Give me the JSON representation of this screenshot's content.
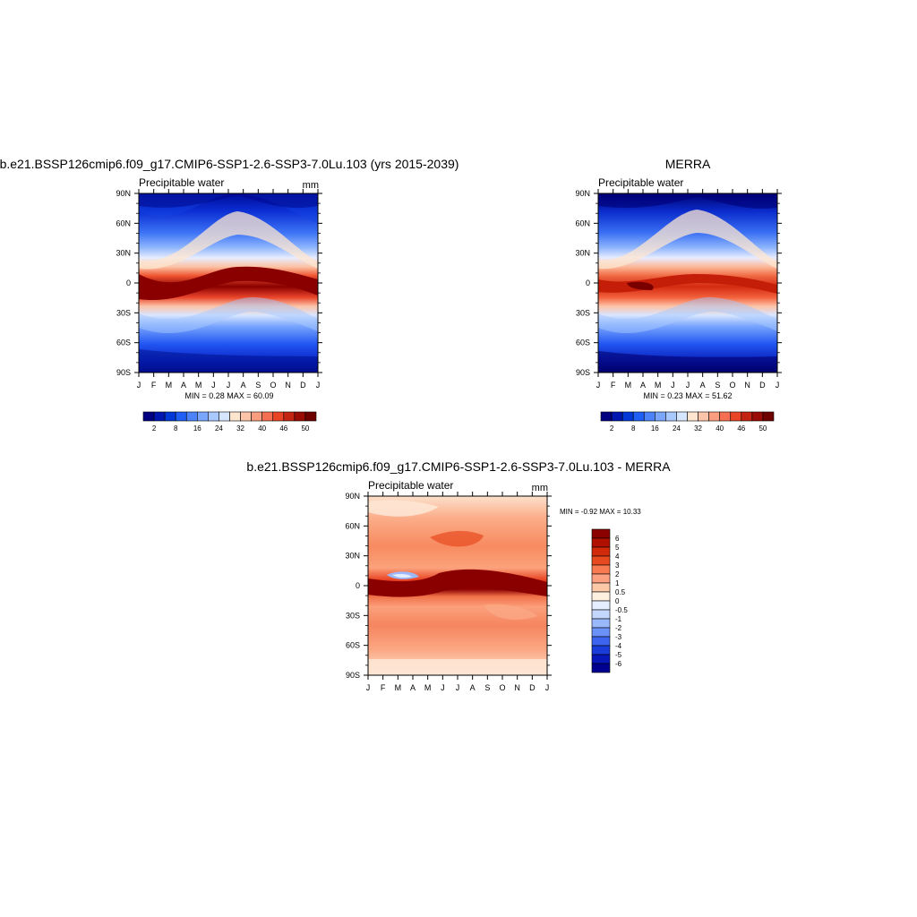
{
  "chart_data": [
    {
      "type": "heatmap",
      "title": "b.e21.BSSP126cmip6.f09_g17.CMIP6-SSP1-2.6-SSP3-7.0Lu.103 (yrs 2015-2039)",
      "subtitle_left": "Precipitable water",
      "units": "mm",
      "x_ticks": [
        "J",
        "F",
        "M",
        "A",
        "M",
        "J",
        "J",
        "A",
        "S",
        "O",
        "N",
        "D",
        "J"
      ],
      "y_ticks": [
        "90N",
        "60N",
        "30N",
        "0",
        "30S",
        "60S",
        "90S"
      ],
      "stats": "MIN =   0.28 MAX =  60.09",
      "colorbar_labels": [
        "2",
        "8",
        "16",
        "24",
        "32",
        "40",
        "46",
        "50"
      ],
      "colors": [
        "#000080",
        "#0016b0",
        "#0038d8",
        "#1f5ff5",
        "#4c82fa",
        "#7aa6fd",
        "#a8c8fe",
        "#d6e6ff",
        "#fde5d0",
        "#fcc4a8",
        "#fb9e7f",
        "#f76f52",
        "#ea4427",
        "#c42412",
        "#990b05",
        "#6e0000"
      ],
      "note": "latitude-month field of precipitable water"
    },
    {
      "type": "heatmap",
      "title": "MERRA",
      "subtitle_left": "Precipitable water",
      "units": "",
      "x_ticks": [
        "J",
        "F",
        "M",
        "A",
        "M",
        "J",
        "J",
        "A",
        "S",
        "O",
        "N",
        "D",
        "J"
      ],
      "y_ticks": [
        "90N",
        "60N",
        "30N",
        "0",
        "30S",
        "60S",
        "90S"
      ],
      "stats": "MIN =   0.23 MAX =  51.62",
      "colorbar_labels": [
        "2",
        "8",
        "16",
        "24",
        "32",
        "40",
        "46",
        "50"
      ]
    },
    {
      "type": "heatmap",
      "title": "b.e21.BSSP126cmip6.f09_g17.CMIP6-SSP1-2.6-SSP3-7.0Lu.103 - MERRA",
      "subtitle_left": "Precipitable water",
      "units": "mm",
      "x_ticks": [
        "J",
        "F",
        "M",
        "A",
        "M",
        "J",
        "J",
        "A",
        "S",
        "O",
        "N",
        "D",
        "J"
      ],
      "y_ticks": [
        "90N",
        "60N",
        "30N",
        "0",
        "30S",
        "60S",
        "90S"
      ],
      "stats": "MIN =  -0.92 MAX =  10.33",
      "colorbar_labels": [
        "6",
        "5",
        "4",
        "3",
        "2",
        "1",
        "0.5",
        "0",
        "-0.5",
        "-1",
        "-2",
        "-3",
        "-4",
        "-5",
        "-6"
      ],
      "colors": [
        "#8b0000",
        "#b01000",
        "#d02a0a",
        "#e84a20",
        "#f77a50",
        "#fba080",
        "#fdc8a8",
        "#fff0e0",
        "#e4eeff",
        "#c4d8fe",
        "#9ab8fc",
        "#6a92f8",
        "#3c64ee",
        "#1a3cd8",
        "#0818b8",
        "#000090"
      ]
    }
  ]
}
